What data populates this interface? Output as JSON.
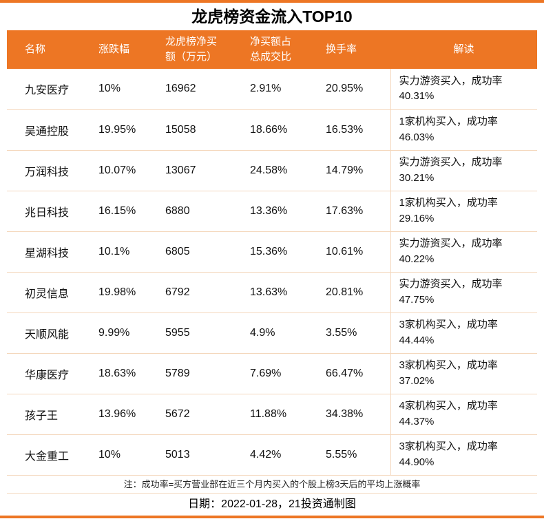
{
  "title": "龙虎榜资金流入TOP10",
  "colors": {
    "accent": "#ED7624",
    "grid_line": "#F4D7BC",
    "header_text": "#FFFFFF"
  },
  "chart_data": {
    "type": "table",
    "title": "龙虎榜资金流入TOP10",
    "columns": [
      "名称",
      "涨跌幅",
      "龙虎榜净买额（万元）",
      "净买额占总成交比",
      "换手率",
      "解读"
    ],
    "rows": [
      [
        "九安医疗",
        "10%",
        "16962",
        "2.91%",
        "20.95%",
        "实力游资买入，成功率40.31%"
      ],
      [
        "吴通控股",
        "19.95%",
        "15058",
        "18.66%",
        "16.53%",
        "1家机构买入，成功率46.03%"
      ],
      [
        "万润科技",
        "10.07%",
        "13067",
        "24.58%",
        "14.79%",
        "实力游资买入，成功率30.21%"
      ],
      [
        "兆日科技",
        "16.15%",
        "6880",
        "13.36%",
        "17.63%",
        "1家机构买入，成功率29.16%"
      ],
      [
        "星湖科技",
        "10.1%",
        "6805",
        "15.36%",
        "10.61%",
        "实力游资买入，成功率40.22%"
      ],
      [
        "初灵信息",
        "19.98%",
        "6792",
        "13.63%",
        "20.81%",
        "实力游资买入，成功率47.75%"
      ],
      [
        "天顺风能",
        "9.99%",
        "5955",
        "4.9%",
        "3.55%",
        "3家机构买入，成功率44.44%"
      ],
      [
        "华康医疗",
        "18.63%",
        "5789",
        "7.69%",
        "66.47%",
        "3家机构买入，成功率37.02%"
      ],
      [
        "孩子王",
        "13.96%",
        "5672",
        "11.88%",
        "34.38%",
        "4家机构买入，成功率44.37%"
      ],
      [
        "大金重工",
        "10%",
        "5013",
        "4.42%",
        "5.55%",
        "3家机构买入，成功率44.90%"
      ]
    ]
  },
  "footer": {
    "note": "注：成功率=买方营业部在近三个月内买入的个股上榜3天后的平均上涨概率",
    "date_line": "日期：2022-01-28，21投资通制图"
  }
}
